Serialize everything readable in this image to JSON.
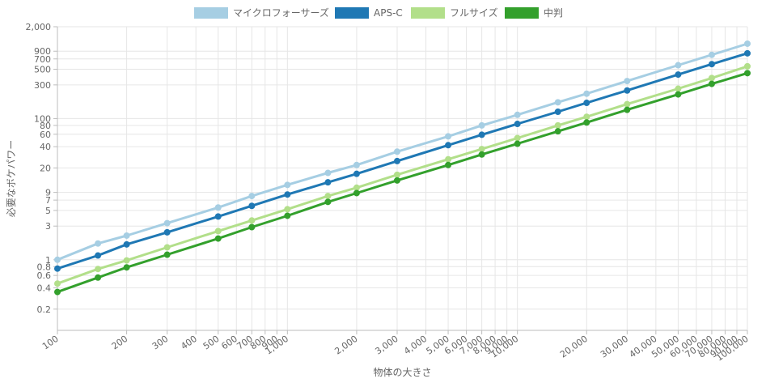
{
  "chart_data": {
    "type": "line",
    "xlabel": "物体の大きさ",
    "ylabel": "必要なボケパワー",
    "x_scale": "log",
    "y_scale": "log",
    "xlim": [
      100,
      100000
    ],
    "ylim": [
      0.1,
      2000
    ],
    "grid": true,
    "legend_position": "top",
    "x_ticks": [
      {
        "v": 100,
        "label": "100"
      },
      {
        "v": 200,
        "label": "200"
      },
      {
        "v": 300,
        "label": "300"
      },
      {
        "v": 400,
        "label": "400"
      },
      {
        "v": 500,
        "label": "500"
      },
      {
        "v": 600,
        "label": "600"
      },
      {
        "v": 700,
        "label": "700"
      },
      {
        "v": 800,
        "label": "800"
      },
      {
        "v": 900,
        "label": "900"
      },
      {
        "v": 1000,
        "label": "1,000"
      },
      {
        "v": 2000,
        "label": "2,000"
      },
      {
        "v": 3000,
        "label": "3,000"
      },
      {
        "v": 4000,
        "label": "4,000"
      },
      {
        "v": 5000,
        "label": "5,000"
      },
      {
        "v": 6000,
        "label": "6,000"
      },
      {
        "v": 7000,
        "label": "7,000"
      },
      {
        "v": 8000,
        "label": "8,000"
      },
      {
        "v": 9000,
        "label": "9,000"
      },
      {
        "v": 10000,
        "label": "10,000"
      },
      {
        "v": 20000,
        "label": "20,000"
      },
      {
        "v": 30000,
        "label": "30,000"
      },
      {
        "v": 40000,
        "label": "40,000"
      },
      {
        "v": 50000,
        "label": "50,000"
      },
      {
        "v": 60000,
        "label": "60,000"
      },
      {
        "v": 70000,
        "label": "70,000"
      },
      {
        "v": 80000,
        "label": "80,000"
      },
      {
        "v": 90000,
        "label": "90,000"
      },
      {
        "v": 100000,
        "label": "100,000"
      }
    ],
    "y_ticks": [
      {
        "v": 0.2,
        "label": "0.2"
      },
      {
        "v": 0.4,
        "label": "0.4"
      },
      {
        "v": 0.6,
        "label": "0.6"
      },
      {
        "v": 0.8,
        "label": "0.8"
      },
      {
        "v": 1,
        "label": "1"
      },
      {
        "v": 3,
        "label": "3"
      },
      {
        "v": 5,
        "label": "5"
      },
      {
        "v": 7,
        "label": "7"
      },
      {
        "v": 9,
        "label": "9"
      },
      {
        "v": 20,
        "label": "20"
      },
      {
        "v": 40,
        "label": "40"
      },
      {
        "v": 60,
        "label": "60"
      },
      {
        "v": 80,
        "label": "80"
      },
      {
        "v": 100,
        "label": "100"
      },
      {
        "v": 300,
        "label": "300"
      },
      {
        "v": 500,
        "label": "500"
      },
      {
        "v": 700,
        "label": "700"
      },
      {
        "v": 900,
        "label": "900"
      },
      {
        "v": 2000,
        "label": "2,000"
      }
    ],
    "x": [
      100,
      150,
      200,
      300,
      500,
      700,
      1000,
      1500,
      2000,
      3000,
      5000,
      7000,
      10000,
      15000,
      20000,
      30000,
      50000,
      70000,
      100000
    ],
    "series": [
      {
        "name": "マイクロフォーサーズ",
        "color": "#a6cee3",
        "values": [
          1.0,
          1.7,
          2.2,
          3.3,
          5.5,
          8.0,
          11.5,
          17.0,
          22.0,
          34.0,
          56.0,
          80.0,
          113.0,
          170.0,
          225.0,
          340.0,
          570.0,
          800.0,
          1150.0
        ]
      },
      {
        "name": "APS-C",
        "color": "#1f78b4",
        "values": [
          0.75,
          1.15,
          1.65,
          2.45,
          4.1,
          5.8,
          8.4,
          12.5,
          16.5,
          25.0,
          42.0,
          59.0,
          84.0,
          125.0,
          167.0,
          250.0,
          420.0,
          590.0,
          840.0
        ]
      },
      {
        "name": "フルサイズ",
        "color": "#b2df8a",
        "values": [
          0.46,
          0.74,
          0.98,
          1.5,
          2.55,
          3.6,
          5.2,
          8.0,
          10.5,
          16.0,
          26.5,
          37.0,
          53.0,
          80.0,
          106.0,
          160.0,
          265.0,
          375.0,
          550.0
        ]
      },
      {
        "name": "中判",
        "color": "#33a02c",
        "values": [
          0.35,
          0.56,
          0.78,
          1.18,
          2.0,
          2.9,
          4.2,
          6.6,
          8.8,
          13.3,
          22.0,
          31.0,
          44.0,
          66.0,
          88.0,
          133.0,
          220.0,
          310.0,
          440.0
        ]
      }
    ]
  }
}
